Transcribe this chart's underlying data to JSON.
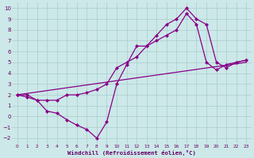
{
  "xlabel": "Windchill (Refroidissement éolien,°C)",
  "background_color": "#cce8e8",
  "line_color": "#880088",
  "grid_color": "#aacccc",
  "xlim": [
    -0.5,
    23.5
  ],
  "ylim": [
    -2.5,
    10.5
  ],
  "xticks": [
    0,
    1,
    2,
    3,
    4,
    5,
    6,
    7,
    8,
    9,
    10,
    11,
    12,
    13,
    14,
    15,
    16,
    17,
    18,
    19,
    20,
    21,
    22,
    23
  ],
  "yticks": [
    -2,
    -1,
    0,
    1,
    2,
    3,
    4,
    5,
    6,
    7,
    8,
    9,
    10
  ],
  "series1_x": [
    0,
    1,
    2,
    3,
    4,
    5,
    6,
    7,
    8,
    9,
    10,
    11,
    12,
    13,
    14,
    15,
    16,
    17,
    18,
    19,
    20,
    21,
    22,
    23
  ],
  "series1_y": [
    2.0,
    1.8,
    1.5,
    0.5,
    0.3,
    -0.3,
    -0.8,
    -1.2,
    -2.0,
    -0.5,
    3.0,
    4.8,
    6.5,
    6.5,
    7.5,
    8.5,
    9.0,
    10.0,
    9.0,
    8.5,
    5.0,
    4.5,
    5.0,
    5.2
  ],
  "series2_x": [
    0,
    1,
    2,
    3,
    4,
    5,
    6,
    7,
    8,
    9,
    10,
    11,
    12,
    13,
    14,
    15,
    16,
    17,
    18,
    19,
    20,
    21,
    22,
    23
  ],
  "series2_y": [
    2.0,
    2.0,
    1.5,
    1.5,
    1.5,
    2.0,
    2.0,
    2.2,
    2.5,
    3.0,
    4.5,
    5.0,
    5.5,
    6.5,
    7.0,
    7.5,
    8.0,
    9.5,
    8.5,
    5.0,
    4.3,
    4.8,
    5.0,
    5.2
  ],
  "series3_x": [
    0,
    23
  ],
  "series3_y": [
    2.0,
    5.0
  ]
}
